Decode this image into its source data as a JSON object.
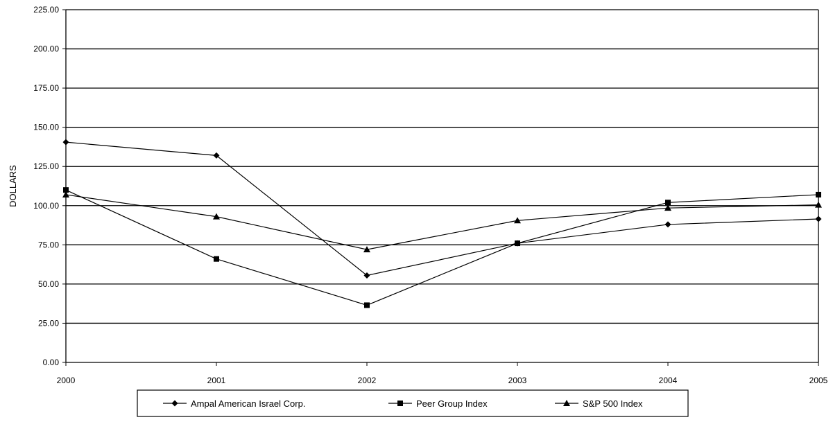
{
  "chart_data": {
    "type": "line",
    "title": "",
    "xlabel": "",
    "ylabel": "DOLLARS",
    "ylim": [
      0,
      225
    ],
    "y_ticks": [
      "0.00",
      "25.00",
      "50.00",
      "75.00",
      "100.00",
      "125.00",
      "150.00",
      "175.00",
      "200.00",
      "225.00"
    ],
    "categories": [
      "2000",
      "2001",
      "2002",
      "2003",
      "2004",
      "2005"
    ],
    "grid": "horizontal",
    "legend_position": "bottom",
    "series": [
      {
        "name": "Ampal American Israel Corp.",
        "marker": "diamond",
        "values": [
          140.5,
          132.0,
          55.5,
          76.0,
          88.0,
          91.5
        ]
      },
      {
        "name": "Peer Group Index",
        "marker": "square",
        "values": [
          110.0,
          66.0,
          36.5,
          76.0,
          102.0,
          107.0
        ]
      },
      {
        "name": "S&P 500 Index",
        "marker": "triangle",
        "values": [
          107.0,
          93.0,
          72.0,
          90.5,
          98.5,
          100.5
        ]
      }
    ]
  }
}
